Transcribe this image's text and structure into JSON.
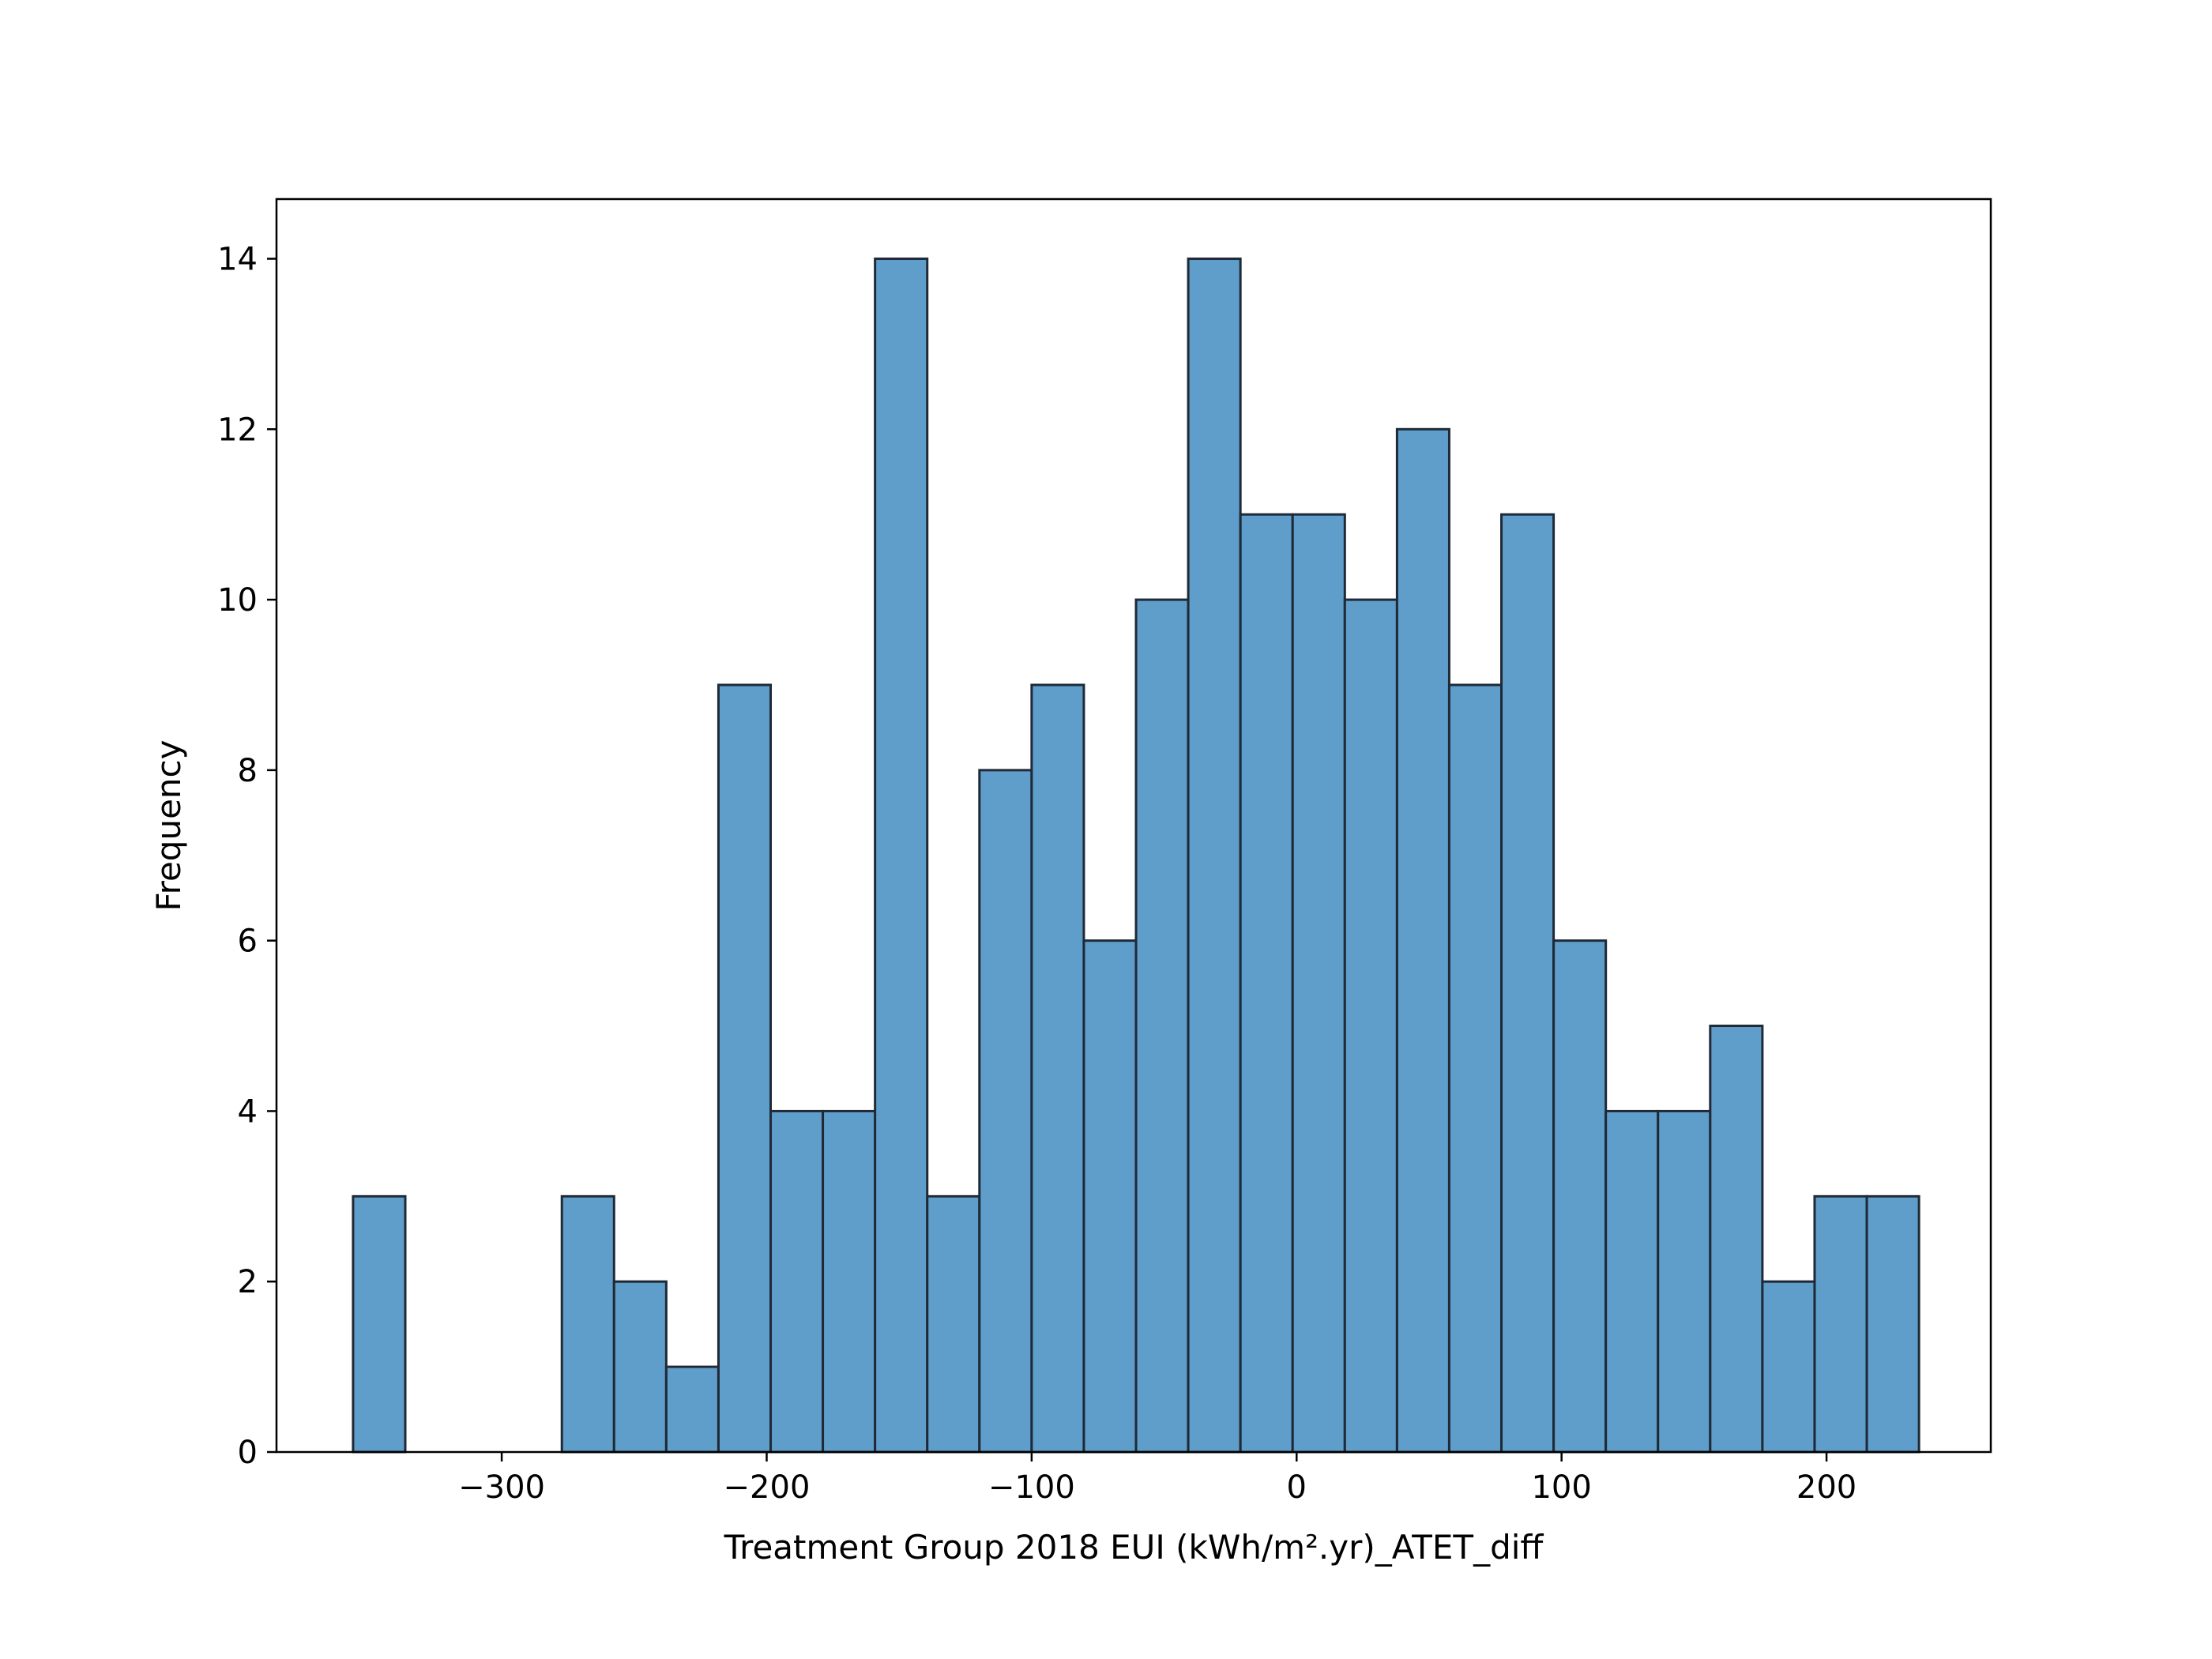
{
  "chart_data": {
    "type": "bar",
    "title": "",
    "xlabel": "Treatment Group 2018 EUI (kWh/m².yr)_ATET_diff",
    "ylabel": "Frequency",
    "xlim": [
      -385,
      262
    ],
    "ylim": [
      0,
      14.7
    ],
    "x_ticks": [
      -300,
      -200,
      -100,
      0,
      100,
      200
    ],
    "x_tick_labels": [
      "−300",
      "−200",
      "−100",
      "0",
      "100",
      "200"
    ],
    "y_ticks": [
      0,
      2,
      4,
      6,
      8,
      10,
      12,
      14
    ],
    "y_tick_labels": [
      "0",
      "2",
      "4",
      "6",
      "8",
      "10",
      "12",
      "14"
    ],
    "grid": false,
    "bar_color": "#5f9dcb",
    "edge_color": "#1f2a36",
    "bin_edges": [
      -356.1,
      -336.4,
      -316.7,
      -297.0,
      -277.3,
      -257.6,
      -237.9,
      -218.2,
      -198.5,
      -178.8,
      -159.1,
      -139.4,
      -119.7,
      -100.0,
      -80.3,
      -60.6,
      -40.9,
      -21.2,
      -1.5,
      18.2,
      37.9,
      57.6,
      77.3,
      97.0,
      116.7,
      136.4,
      156.1,
      175.8,
      195.5,
      215.2,
      234.9
    ],
    "values": [
      3,
      0,
      0,
      0,
      3,
      2,
      1,
      9,
      4,
      4,
      14,
      3,
      8,
      9,
      6,
      10,
      14,
      11,
      11,
      10,
      12,
      9,
      11,
      6,
      4,
      4,
      5,
      2,
      3,
      3
    ]
  }
}
